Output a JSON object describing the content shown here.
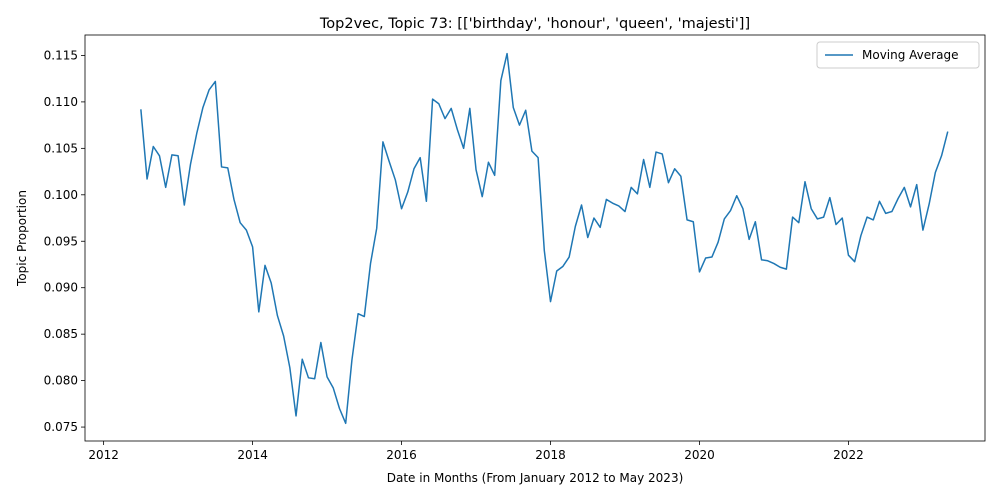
{
  "chart_data": {
    "type": "line",
    "title": "Top2vec, Topic 73: [['birthday', 'honour', 'queen', 'majesti']]",
    "xlabel": "Date in Months (From January 2012 to May 2023)",
    "ylabel": "Topic Proportion",
    "xlim": [
      "2011-10",
      "2023-11"
    ],
    "ylim": [
      0.0735,
      0.1172
    ],
    "x_ticks": [
      "2012",
      "2014",
      "2016",
      "2018",
      "2020",
      "2022"
    ],
    "y_ticks": [
      "0.075",
      "0.080",
      "0.085",
      "0.090",
      "0.095",
      "0.100",
      "0.105",
      "0.110",
      "0.115"
    ],
    "grid": false,
    "legend": {
      "position": "top-right",
      "entries": [
        "Moving Average"
      ]
    },
    "series": [
      {
        "name": "Moving Average",
        "color": "#1f77b4",
        "x": [
          "2012-07",
          "2012-08",
          "2012-09",
          "2012-10",
          "2012-11",
          "2012-12",
          "2013-01",
          "2013-02",
          "2013-03",
          "2013-04",
          "2013-05",
          "2013-06",
          "2013-07",
          "2013-08",
          "2013-09",
          "2013-10",
          "2013-11",
          "2013-12",
          "2014-01",
          "2014-02",
          "2014-03",
          "2014-04",
          "2014-05",
          "2014-06",
          "2014-07",
          "2014-08",
          "2014-09",
          "2014-10",
          "2014-11",
          "2014-12",
          "2015-01",
          "2015-02",
          "2015-03",
          "2015-04",
          "2015-05",
          "2015-06",
          "2015-07",
          "2015-08",
          "2015-09",
          "2015-10",
          "2015-11",
          "2015-12",
          "2016-01",
          "2016-02",
          "2016-03",
          "2016-04",
          "2016-05",
          "2016-06",
          "2016-07",
          "2016-08",
          "2016-09",
          "2016-10",
          "2016-11",
          "2016-12",
          "2017-01",
          "2017-02",
          "2017-03",
          "2017-04",
          "2017-05",
          "2017-06",
          "2017-07",
          "2017-08",
          "2017-09",
          "2017-10",
          "2017-11",
          "2017-12",
          "2018-01",
          "2018-02",
          "2018-03",
          "2018-04",
          "2018-05",
          "2018-06",
          "2018-07",
          "2018-08",
          "2018-09",
          "2018-10",
          "2018-11",
          "2018-12",
          "2019-01",
          "2019-02",
          "2019-03",
          "2019-04",
          "2019-05",
          "2019-06",
          "2019-07",
          "2019-08",
          "2019-09",
          "2019-10",
          "2019-11",
          "2019-12",
          "2020-01",
          "2020-02",
          "2020-03",
          "2020-04",
          "2020-05",
          "2020-06",
          "2020-07",
          "2020-08",
          "2020-09",
          "2020-10",
          "2020-11",
          "2020-12",
          "2021-01",
          "2021-02",
          "2021-03",
          "2021-04",
          "2021-05",
          "2021-06",
          "2021-07",
          "2021-08",
          "2021-09",
          "2021-10",
          "2021-11",
          "2021-12",
          "2022-01",
          "2022-02",
          "2022-03",
          "2022-04",
          "2022-05",
          "2022-06",
          "2022-07",
          "2022-08",
          "2022-09",
          "2022-10",
          "2022-11",
          "2022-12",
          "2023-01",
          "2023-02",
          "2023-03",
          "2023-04",
          "2023-05"
        ],
        "values": [
          0.1092,
          0.1017,
          0.1052,
          0.1042,
          0.1008,
          0.1043,
          0.1042,
          0.0989,
          0.1033,
          0.1066,
          0.1094,
          0.1113,
          0.1122,
          0.103,
          0.1029,
          0.0995,
          0.097,
          0.0962,
          0.0944,
          0.0874,
          0.0924,
          0.0905,
          0.087,
          0.0848,
          0.0814,
          0.0762,
          0.0823,
          0.0803,
          0.0802,
          0.0841,
          0.0804,
          0.0792,
          0.077,
          0.0754,
          0.0822,
          0.0872,
          0.0869,
          0.0926,
          0.0964,
          0.1057,
          0.1036,
          0.1016,
          0.0985,
          0.1003,
          0.1028,
          0.104,
          0.0993,
          0.1103,
          0.1098,
          0.1082,
          0.1093,
          0.107,
          0.105,
          0.1093,
          0.1027,
          0.0998,
          0.1035,
          0.1021,
          0.1123,
          0.1152,
          0.1094,
          0.1075,
          0.1091,
          0.1047,
          0.104,
          0.094,
          0.0885,
          0.0918,
          0.0923,
          0.0933,
          0.0966,
          0.0989,
          0.0954,
          0.0975,
          0.0965,
          0.0995,
          0.0991,
          0.0988,
          0.0982,
          0.1008,
          0.1001,
          0.1038,
          0.1008,
          0.1046,
          0.1044,
          0.1013,
          0.1028,
          0.102,
          0.0973,
          0.0971,
          0.0917,
          0.0932,
          0.0933,
          0.0949,
          0.0974,
          0.0983,
          0.0999,
          0.0985,
          0.0952,
          0.0971,
          0.093,
          0.0929,
          0.0926,
          0.0922,
          0.092,
          0.0976,
          0.097,
          0.1014,
          0.0985,
          0.0974,
          0.0976,
          0.0997,
          0.0968,
          0.0975,
          0.0935,
          0.0928,
          0.0956,
          0.0976,
          0.0973,
          0.0993,
          0.098,
          0.0982,
          0.0996,
          0.1008,
          0.0987,
          0.1011,
          0.0962,
          0.099,
          0.1024,
          0.1042,
          0.1068
        ]
      }
    ]
  }
}
